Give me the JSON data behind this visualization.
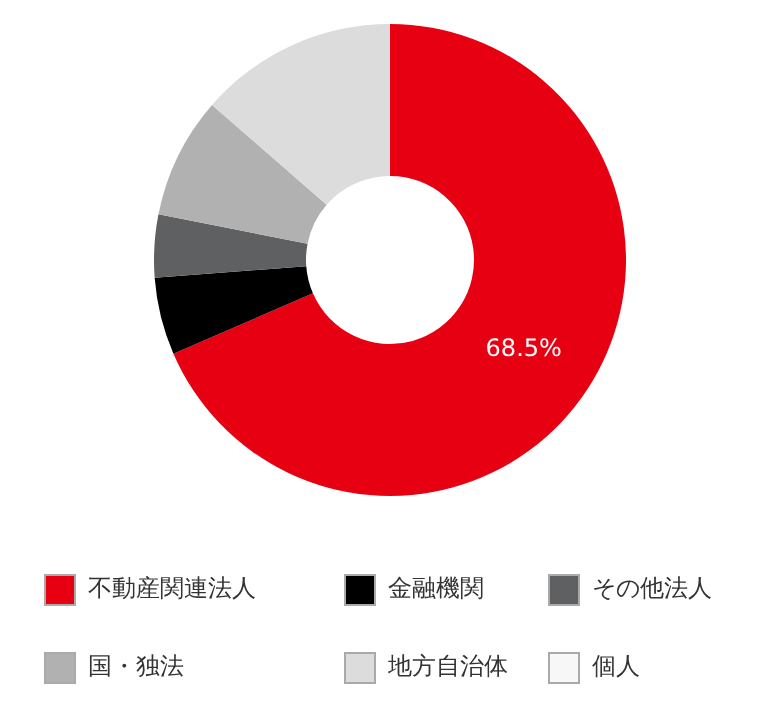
{
  "chart_data": {
    "type": "donut",
    "categories": [
      "不動産関連法人",
      "金融機関",
      "その他法人",
      "国・独法",
      "地方自治体",
      "個人"
    ],
    "values": [
      68.5,
      5.3,
      4.3,
      8.3,
      13.6,
      0
    ],
    "colors": [
      "#e60012",
      "#000000",
      "#5f6062",
      "#b1b1b1",
      "#dcdcdc",
      "#f7f7f7"
    ],
    "value_labels": [
      "68.5%",
      null,
      null,
      null,
      null,
      null
    ],
    "legend": "bottom"
  }
}
